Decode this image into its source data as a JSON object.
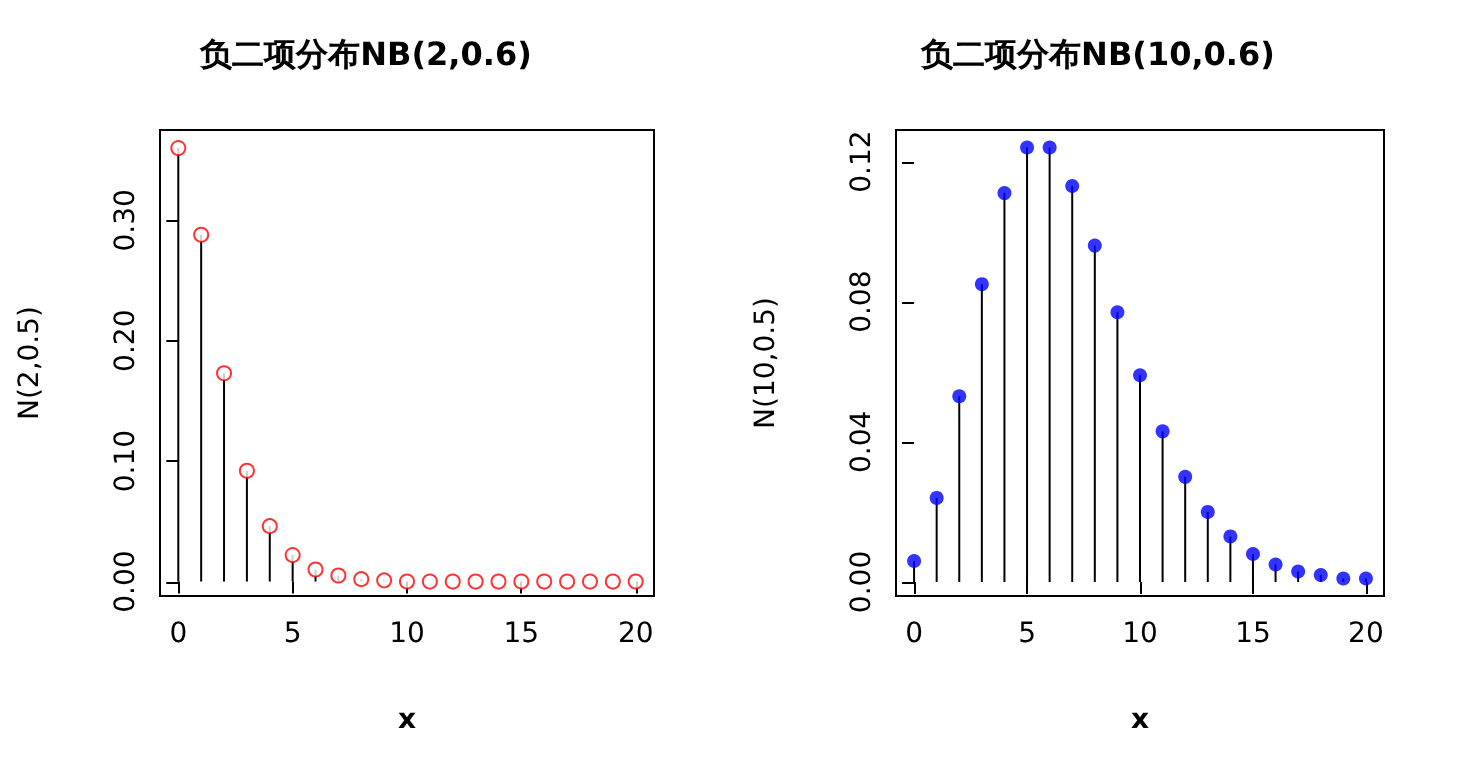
{
  "chart_data": [
    {
      "type": "lollipop",
      "title": "负二项分布NB(2,0.6)",
      "xlabel": "x",
      "ylabel": "N(2,0.5)",
      "x": [
        0,
        1,
        2,
        3,
        4,
        5,
        6,
        7,
        8,
        9,
        10,
        11,
        12,
        13,
        14,
        15,
        16,
        17,
        18,
        19,
        20
      ],
      "series": [
        {
          "color": "#ff0000",
          "values": [
            0.36,
            0.288,
            0.173,
            0.092,
            0.046,
            0.022,
            0.01,
            0.005,
            0.002,
            0.001,
            0.0,
            0.0,
            0.0,
            0.0,
            0.0,
            0.0,
            0.0,
            0.0,
            0.0,
            0.0,
            0.0
          ]
        }
      ],
      "xlim": [
        -0.8,
        20.8
      ],
      "xticks": [
        0,
        5,
        10,
        15,
        20
      ],
      "ylim": [
        -0.012,
        0.375
      ],
      "yticks": [
        {
          "value": 0,
          "label": "0.00"
        },
        {
          "value": 0.1,
          "label": "0.10"
        },
        {
          "value": 0.2,
          "label": "0.20"
        },
        {
          "value": 0.3,
          "label": "0.30"
        }
      ],
      "marker": "circle"
    },
    {
      "type": "lollipop",
      "title": "负二项分布NB(10,0.6)",
      "xlabel": "x",
      "ylabel": "N(10,0.5)",
      "x": [
        0,
        1,
        2,
        3,
        4,
        5,
        6,
        7,
        8,
        9,
        10,
        11,
        12,
        13,
        14,
        15,
        16,
        17,
        18,
        19,
        20
      ],
      "series": [
        {
          "color": "#0000ff",
          "values": [
            0.006,
            0.024,
            0.053,
            0.085,
            0.111,
            0.124,
            0.124,
            0.113,
            0.096,
            0.077,
            0.059,
            0.043,
            0.03,
            0.02,
            0.013,
            0.008,
            0.005,
            0.003,
            0.002,
            0.001,
            0.001
          ]
        }
      ],
      "xlim": [
        -0.8,
        20.8
      ],
      "xticks": [
        0,
        5,
        10,
        15,
        20
      ],
      "ylim": [
        -0.004,
        0.129
      ],
      "yticks": [
        {
          "value": 0,
          "label": "0.00"
        },
        {
          "value": 0.04,
          "label": "0.04"
        },
        {
          "value": 0.08,
          "label": "0.08"
        },
        {
          "value": 0.12,
          "label": "0.12"
        }
      ],
      "marker": "circle"
    }
  ]
}
